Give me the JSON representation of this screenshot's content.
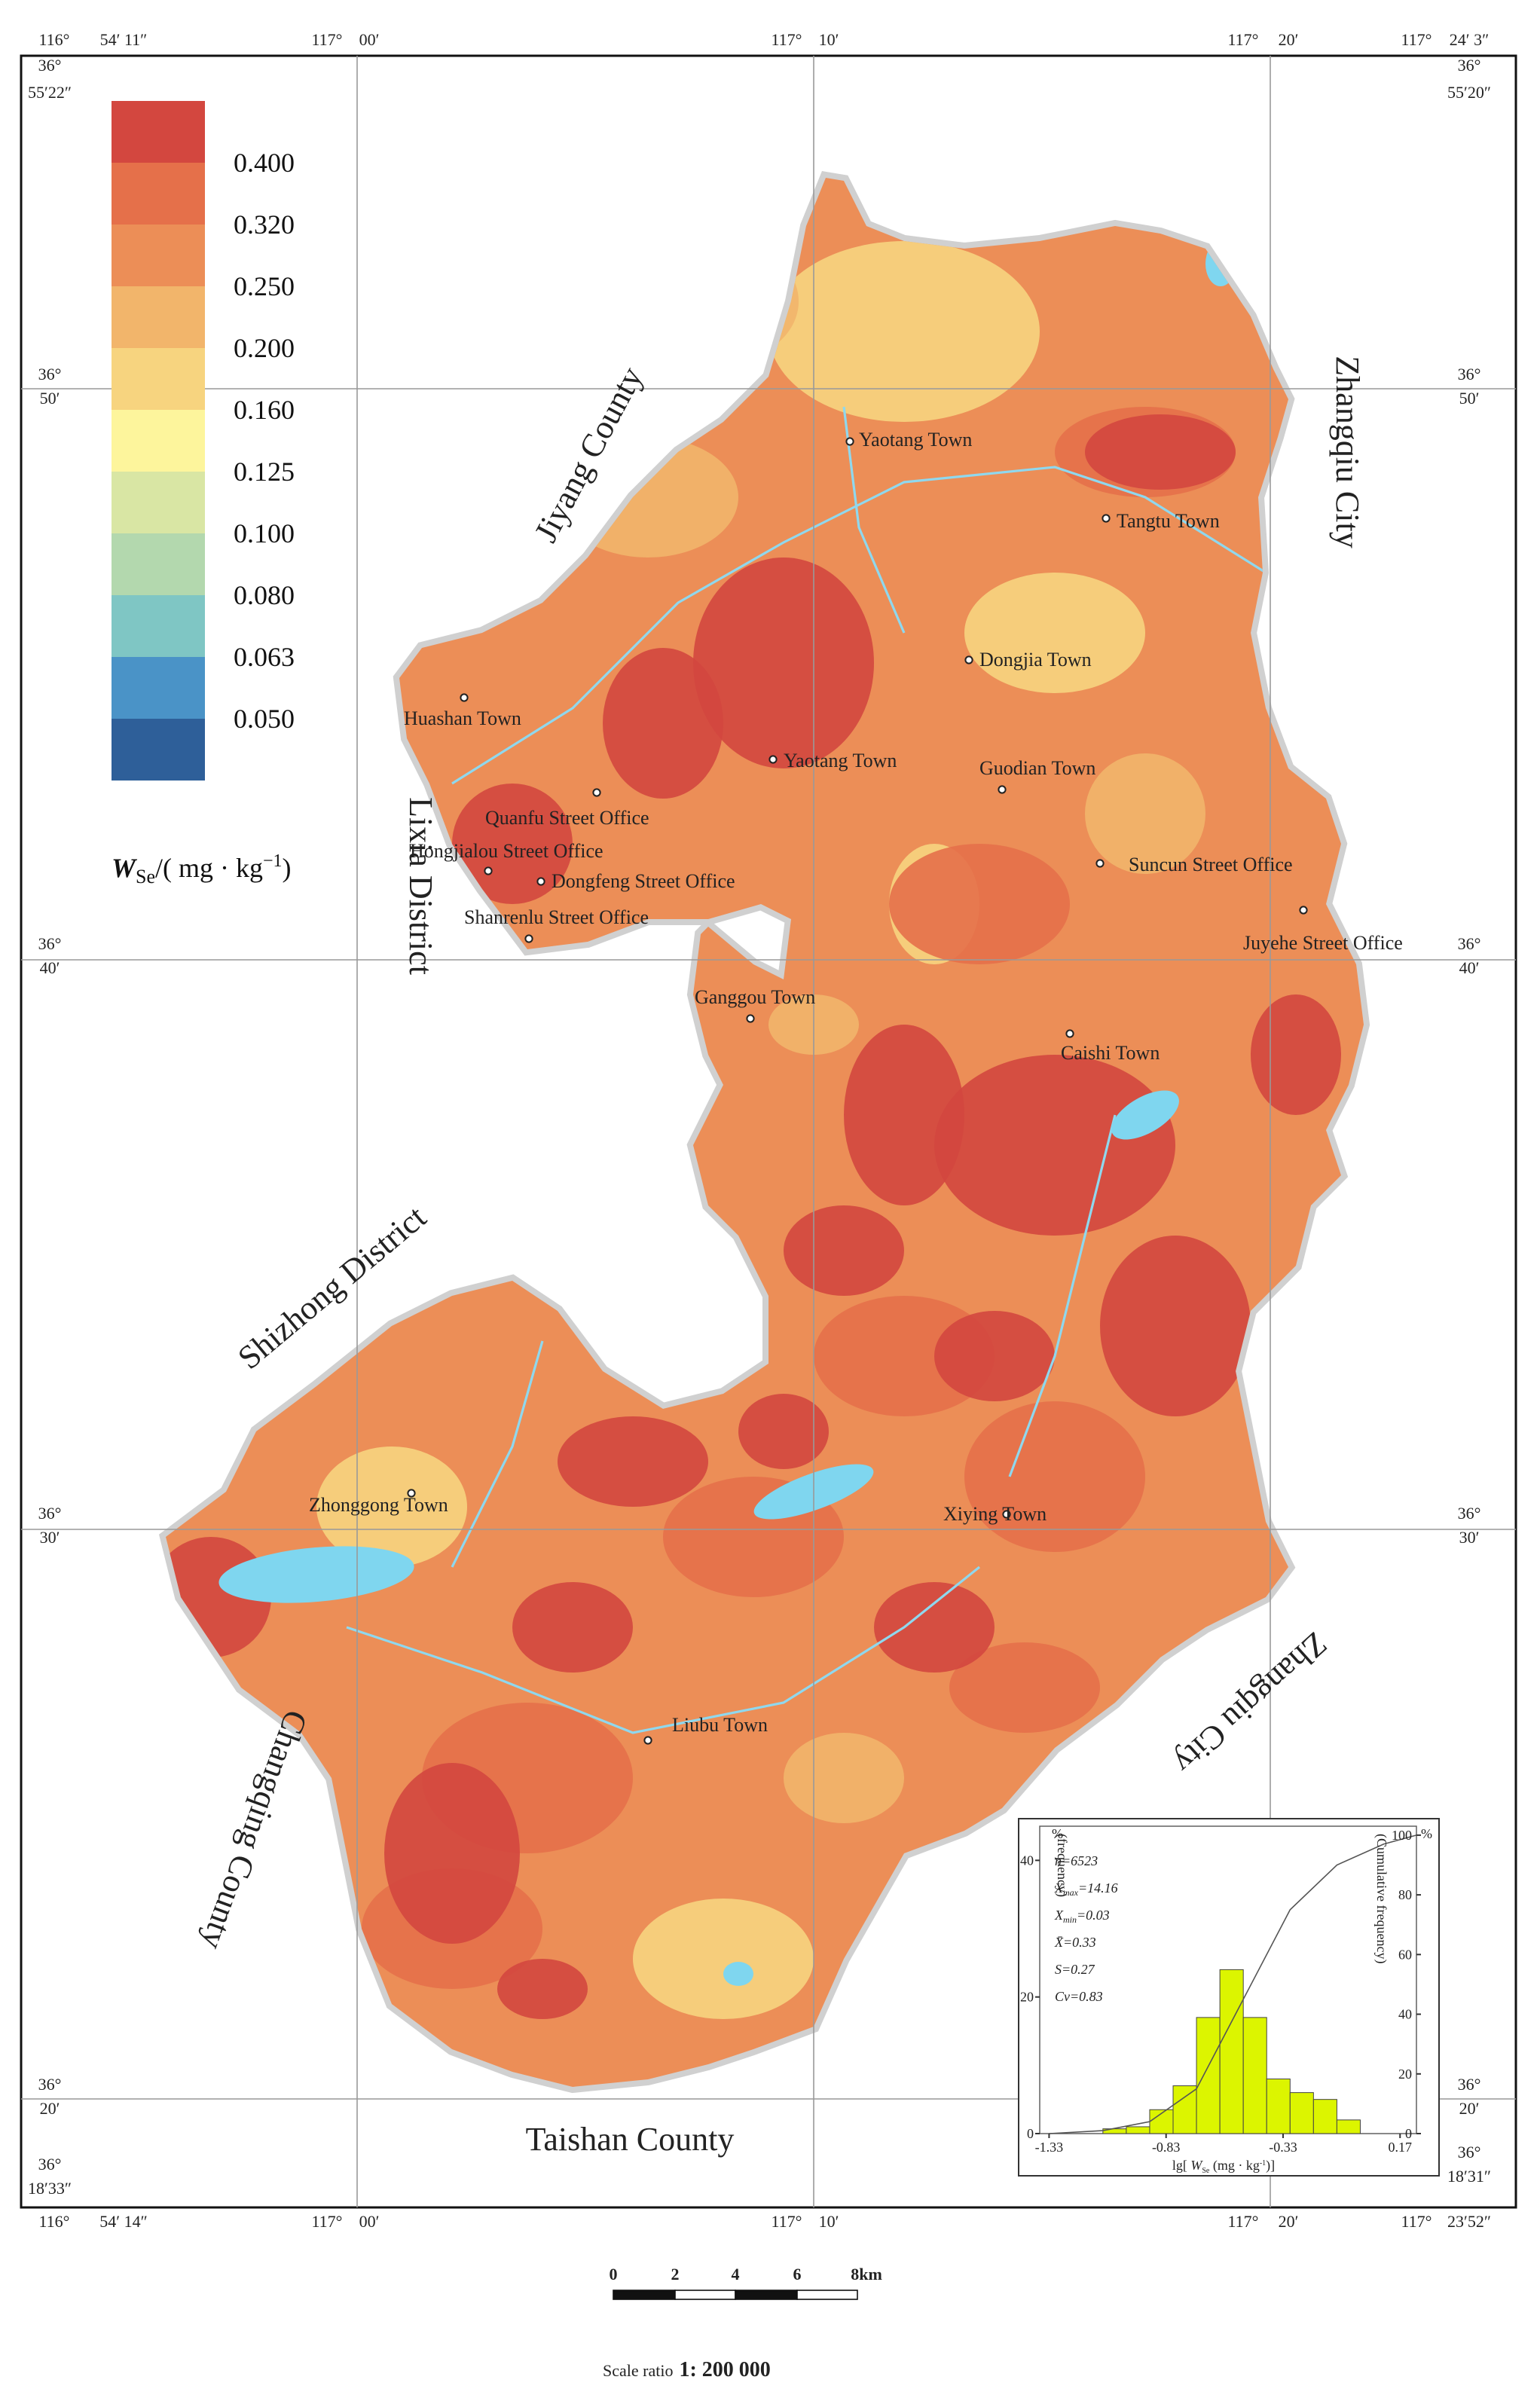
{
  "coordinates": {
    "top": [
      "116°",
      "54′ 11″",
      "117°",
      "00′",
      "117°",
      "10′",
      "117°",
      "20′",
      "117°",
      "24′ 3″"
    ],
    "bottom": [
      "116°",
      "54′ 14″",
      "117°",
      "00′",
      "117°",
      "10′",
      "117°",
      "20′",
      "117°",
      "23′52″"
    ],
    "left": [
      "36°",
      "55′22″",
      "36°",
      "50′",
      "36°",
      "40′",
      "36°",
      "30′",
      "36°",
      "20′",
      "36°",
      "18′33″"
    ],
    "right": [
      "36°",
      "55′20″",
      "36°",
      "50′",
      "36°",
      "40′",
      "36°",
      "30′",
      "36°",
      "20′",
      "36°",
      "18′31″"
    ]
  },
  "legend": {
    "labels": [
      "0.400",
      "0.320",
      "0.250",
      "0.200",
      "0.160",
      "0.125",
      "0.100",
      "0.080",
      "0.063",
      "0.050"
    ],
    "colors": [
      "#d3473f",
      "#e5704a",
      "#ec8e57",
      "#f2b56b",
      "#f7d47f",
      "#fdf59c",
      "#d9e6a4",
      "#b3d8ae",
      "#7fc6c4",
      "#4a93c7",
      "#2e5f99"
    ],
    "title": {
      "symbol": "W",
      "sub": "Se",
      "unit": "/( mg · kg",
      "sup": "−1",
      "close": ")"
    }
  },
  "places": [
    "Yaotang Town",
    "Tangtu Town",
    "Dongjia Town",
    "Huashan Town",
    "Yaotang Town",
    "Guodian Town",
    "Quanfu Street Office",
    "Hongjialou Street Office",
    "Dongfeng Street Office",
    "Suncun Street Office",
    "Shanrenlu Street Office",
    "Juyehe Street Office",
    "Ganggou Town",
    "Caishi Town",
    "Zhonggong Town",
    "Xiying Town",
    "Liubu Town"
  ],
  "regions": [
    "Jiyang County",
    "Zhangqiu City",
    "Lixia District",
    "Shizhong District",
    "Changqing County",
    "Zhangqiu City",
    "Taishan County"
  ],
  "chart_data": {
    "type": "histogram",
    "bins": [
      -1.1,
      -1.0,
      -0.9,
      -0.8,
      -0.7,
      -0.6,
      -0.5,
      -0.4,
      -0.3,
      -0.2,
      -0.1,
      0.0
    ],
    "values": [
      0.7,
      1,
      3.5,
      7,
      17,
      24,
      17,
      8,
      6,
      5,
      2
    ],
    "color": "#dcf500",
    "xlim": [
      -1.37,
      0.24
    ],
    "xticks": [
      -1.33,
      -0.83,
      -0.33,
      0.17
    ],
    "ylim": [
      0,
      45
    ],
    "yticks": [
      0,
      20,
      40
    ],
    "y2lim": [
      0,
      103
    ],
    "y2ticks": [
      0,
      20,
      40,
      60,
      80,
      100
    ],
    "yunit": "%",
    "y2unit": "%",
    "ylabel": "(frequency)",
    "y2label": "(Cumulative frequency)",
    "xlabel": {
      "prefix": "lg[ ",
      "symbol": "W",
      "sub": "Se",
      "unit": " (mg · kg",
      "sup": "-1",
      "close": ")]"
    },
    "cumulative": {
      "x": [
        -1.33,
        -1.1,
        -0.9,
        -0.7,
        -0.5,
        -0.3,
        -0.1,
        0.1,
        0.24
      ],
      "values": [
        0,
        1,
        4,
        15,
        45,
        75,
        90,
        97,
        100
      ],
      "axis": "y2"
    },
    "stats": [
      {
        "text": "n=6523"
      },
      {
        "symbol": "X",
        "sub": "max",
        "text": "=14.16"
      },
      {
        "symbol": "X",
        "sub": "min",
        "text": "=0.03"
      },
      {
        "symbol": "X̄",
        "text": "=0.33"
      },
      {
        "text": "S=0.27"
      },
      {
        "text": "Cv=0.83"
      }
    ]
  },
  "scale_bar": {
    "ticks": [
      "0",
      "2",
      "4",
      "6",
      "8km"
    ],
    "ratio_label": "Scale ratio",
    "ratio": "1: 200 000"
  }
}
